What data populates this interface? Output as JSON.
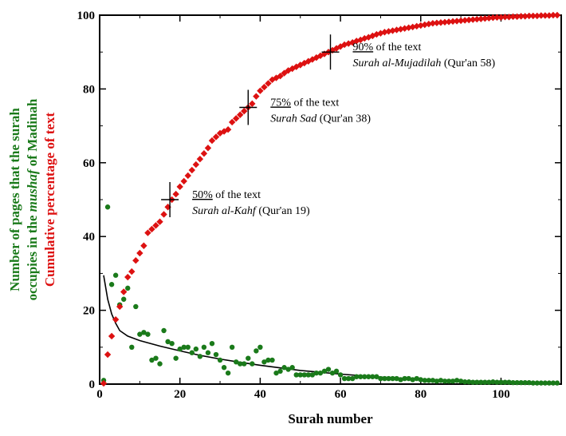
{
  "chart_data": {
    "type": "scatter",
    "xlabel": "Surah number",
    "ylabel_lines": [
      {
        "parts": [
          {
            "text": "Number of pages that the surah",
            "italic": false
          }
        ],
        "color": "#1a7a1a"
      },
      {
        "parts": [
          {
            "text": "occupies in the ",
            "italic": false
          },
          {
            "text": "mushaf",
            "italic": true
          },
          {
            "text": " of Madinah",
            "italic": false
          }
        ],
        "color": "#1a7a1a"
      },
      {
        "parts": [
          {
            "text": "Cumulative percentage of text",
            "italic": false
          }
        ],
        "color": "#dd1111"
      }
    ],
    "xlim": [
      0,
      115
    ],
    "ylim": [
      0,
      100
    ],
    "xticks": [
      0,
      20,
      40,
      60,
      80,
      100
    ],
    "yticks": [
      0,
      20,
      40,
      60,
      80,
      100
    ],
    "grid": false,
    "series": [
      {
        "kind": "pages",
        "color": "#1a7a1a",
        "marker": "circle",
        "points": [
          [
            1,
            1
          ],
          [
            2,
            48
          ],
          [
            3,
            27
          ],
          [
            4,
            29.5
          ],
          [
            5,
            21.5
          ],
          [
            6,
            23
          ],
          [
            7,
            26
          ],
          [
            8,
            10
          ],
          [
            9,
            21
          ],
          [
            10,
            13.5
          ],
          [
            11,
            14
          ],
          [
            12,
            13.5
          ],
          [
            13,
            6.5
          ],
          [
            14,
            7
          ],
          [
            15,
            5.5
          ],
          [
            16,
            14.5
          ],
          [
            17,
            11.5
          ],
          [
            18,
            11
          ],
          [
            19,
            7
          ],
          [
            20,
            9.5
          ],
          [
            21,
            10
          ],
          [
            22,
            10
          ],
          [
            23,
            8.5
          ],
          [
            24,
            9.5
          ],
          [
            25,
            7.5
          ],
          [
            26,
            10
          ],
          [
            27,
            8.5
          ],
          [
            28,
            11
          ],
          [
            29,
            8
          ],
          [
            30,
            6.5
          ],
          [
            31,
            4.5
          ],
          [
            32,
            3
          ],
          [
            33,
            10
          ],
          [
            34,
            6
          ],
          [
            35,
            5.5
          ],
          [
            36,
            5.5
          ],
          [
            37,
            7
          ],
          [
            38,
            5.5
          ],
          [
            39,
            9
          ],
          [
            40,
            10
          ],
          [
            41,
            6
          ],
          [
            42,
            6.5
          ],
          [
            43,
            6.5
          ],
          [
            44,
            3
          ],
          [
            45,
            3.5
          ],
          [
            46,
            4.5
          ],
          [
            47,
            4
          ],
          [
            48,
            4.5
          ],
          [
            49,
            2.5
          ],
          [
            50,
            2.5
          ],
          [
            51,
            2.5
          ],
          [
            52,
            2.5
          ],
          [
            53,
            2.5
          ],
          [
            54,
            3
          ],
          [
            55,
            3
          ],
          [
            56,
            3.5
          ],
          [
            57,
            4
          ],
          [
            58,
            3
          ],
          [
            59,
            3.5
          ],
          [
            60,
            2.5
          ],
          [
            61,
            1.5
          ],
          [
            62,
            1.5
          ],
          [
            63,
            1.5
          ],
          [
            64,
            2
          ],
          [
            65,
            2
          ],
          [
            66,
            2
          ],
          [
            67,
            2
          ],
          [
            68,
            2
          ],
          [
            69,
            2
          ],
          [
            70,
            1.5
          ],
          [
            71,
            1.5
          ],
          [
            72,
            1.5
          ],
          [
            73,
            1.5
          ],
          [
            74,
            1.5
          ],
          [
            75,
            1.2
          ],
          [
            76,
            1.5
          ],
          [
            77,
            1.5
          ],
          [
            78,
            1.2
          ],
          [
            79,
            1.5
          ],
          [
            80,
            1.2
          ],
          [
            81,
            1
          ],
          [
            82,
            1
          ],
          [
            83,
            1
          ],
          [
            84,
            0.8
          ],
          [
            85,
            1
          ],
          [
            86,
            0.8
          ],
          [
            87,
            0.8
          ],
          [
            88,
            0.8
          ],
          [
            89,
            1
          ],
          [
            90,
            0.8
          ],
          [
            91,
            0.6
          ],
          [
            92,
            0.6
          ],
          [
            93,
            0.5
          ],
          [
            94,
            0.5
          ],
          [
            95,
            0.5
          ],
          [
            96,
            0.5
          ],
          [
            97,
            0.5
          ],
          [
            98,
            0.6
          ],
          [
            99,
            0.5
          ],
          [
            100,
            0.5
          ],
          [
            101,
            0.5
          ],
          [
            102,
            0.5
          ],
          [
            103,
            0.4
          ],
          [
            104,
            0.4
          ],
          [
            105,
            0.4
          ],
          [
            106,
            0.4
          ],
          [
            107,
            0.4
          ],
          [
            108,
            0.3
          ],
          [
            109,
            0.3
          ],
          [
            110,
            0.3
          ],
          [
            111,
            0.3
          ],
          [
            112,
            0.3
          ],
          [
            113,
            0.3
          ],
          [
            114,
            0.3
          ]
        ]
      },
      {
        "kind": "cumulative",
        "color": "#dd1111",
        "marker": "diamond",
        "points": [
          [
            1,
            0.2
          ],
          [
            2,
            8
          ],
          [
            3,
            13
          ],
          [
            4,
            17.5
          ],
          [
            5,
            21
          ],
          [
            6,
            25
          ],
          [
            7,
            29
          ],
          [
            8,
            30.5
          ],
          [
            9,
            33.5
          ],
          [
            10,
            35.5
          ],
          [
            11,
            37.5
          ],
          [
            12,
            41
          ],
          [
            13,
            42
          ],
          [
            14,
            43
          ],
          [
            15,
            44
          ],
          [
            16,
            46
          ],
          [
            17,
            48
          ],
          [
            18,
            50
          ],
          [
            19,
            51.5
          ],
          [
            20,
            53.5
          ],
          [
            21,
            55
          ],
          [
            22,
            56.5
          ],
          [
            23,
            58
          ],
          [
            24,
            59.5
          ],
          [
            25,
            61
          ],
          [
            26,
            62.5
          ],
          [
            27,
            64
          ],
          [
            28,
            66
          ],
          [
            29,
            67
          ],
          [
            30,
            68
          ],
          [
            31,
            68.5
          ],
          [
            32,
            69
          ],
          [
            33,
            71
          ],
          [
            34,
            72
          ],
          [
            35,
            73
          ],
          [
            36,
            74
          ],
          [
            37,
            75
          ],
          [
            38,
            76
          ],
          [
            39,
            78
          ],
          [
            40,
            79.5
          ],
          [
            41,
            80.5
          ],
          [
            42,
            81.5
          ],
          [
            43,
            82.5
          ],
          [
            44,
            83
          ],
          [
            45,
            83.5
          ],
          [
            46,
            84.3
          ],
          [
            47,
            85
          ],
          [
            48,
            85.5
          ],
          [
            49,
            86
          ],
          [
            50,
            86.5
          ],
          [
            51,
            87
          ],
          [
            52,
            87.5
          ],
          [
            53,
            88
          ],
          [
            54,
            88.5
          ],
          [
            55,
            89
          ],
          [
            56,
            89.5
          ],
          [
            57,
            90
          ],
          [
            58,
            90.5
          ],
          [
            59,
            91
          ],
          [
            60,
            91.5
          ],
          [
            61,
            92
          ],
          [
            62,
            92.3
          ],
          [
            63,
            92.6
          ],
          [
            64,
            93
          ],
          [
            65,
            93.3
          ],
          [
            66,
            93.7
          ],
          [
            67,
            94
          ],
          [
            68,
            94.4
          ],
          [
            69,
            94.8
          ],
          [
            70,
            95.1
          ],
          [
            71,
            95.4
          ],
          [
            72,
            95.6
          ],
          [
            73,
            95.8
          ],
          [
            74,
            96
          ],
          [
            75,
            96.2
          ],
          [
            76,
            96.4
          ],
          [
            77,
            96.6
          ],
          [
            78,
            96.8
          ],
          [
            79,
            97
          ],
          [
            80,
            97.2
          ],
          [
            81,
            97.4
          ],
          [
            82,
            97.6
          ],
          [
            83,
            97.8
          ],
          [
            84,
            97.9
          ],
          [
            85,
            98
          ],
          [
            86,
            98.1
          ],
          [
            87,
            98.2
          ],
          [
            88,
            98.3
          ],
          [
            89,
            98.4
          ],
          [
            90,
            98.5
          ],
          [
            91,
            98.6
          ],
          [
            92,
            98.7
          ],
          [
            93,
            98.8
          ],
          [
            94,
            98.9
          ],
          [
            95,
            99
          ],
          [
            96,
            99.1
          ],
          [
            97,
            99.2
          ],
          [
            98,
            99.3
          ],
          [
            99,
            99.4
          ],
          [
            100,
            99.4
          ],
          [
            101,
            99.5
          ],
          [
            102,
            99.5
          ],
          [
            103,
            99.6
          ],
          [
            104,
            99.6
          ],
          [
            105,
            99.7
          ],
          [
            106,
            99.7
          ],
          [
            107,
            99.8
          ],
          [
            108,
            99.8
          ],
          [
            109,
            99.8
          ],
          [
            110,
            99.9
          ],
          [
            111,
            99.9
          ],
          [
            112,
            99.9
          ],
          [
            113,
            100
          ],
          [
            114,
            100
          ]
        ]
      }
    ],
    "trend_line": {
      "color": "#000000",
      "points": [
        [
          1,
          29.5
        ],
        [
          2,
          23
        ],
        [
          3,
          19
        ],
        [
          4,
          16.5
        ],
        [
          5,
          14.5
        ],
        [
          7,
          13
        ],
        [
          10,
          11.8
        ],
        [
          15,
          10.3
        ],
        [
          20,
          9
        ],
        [
          25,
          7.8
        ],
        [
          30,
          6.8
        ],
        [
          35,
          5.9
        ],
        [
          40,
          5.1
        ],
        [
          45,
          4.4
        ],
        [
          50,
          3.7
        ],
        [
          55,
          3.2
        ],
        [
          60,
          2.7
        ],
        [
          65,
          2.3
        ],
        [
          70,
          1.9
        ],
        [
          75,
          1.6
        ],
        [
          80,
          1.3
        ],
        [
          85,
          1.1
        ],
        [
          90,
          0.9
        ],
        [
          95,
          0.75
        ],
        [
          100,
          0.6
        ],
        [
          105,
          0.5
        ],
        [
          110,
          0.45
        ],
        [
          114,
          0.4
        ]
      ]
    },
    "markers": [
      {
        "x": 17.5,
        "y": 50,
        "pct_text": "50%",
        "rest_text": " of the text",
        "surah_name": "Surah al-Kahf",
        "surah_ref": " (Qur'an 19)"
      },
      {
        "x": 37,
        "y": 75,
        "pct_text": "75%",
        "rest_text": " of the text",
        "surah_name": "Surah Sad",
        "surah_ref": " (Qur'an 38)"
      },
      {
        "x": 57.5,
        "y": 90,
        "pct_text": "90%",
        "rest_text": " of the text",
        "surah_name": "Surah al-Mujadilah",
        "surah_ref": " (Qur'an 58)"
      }
    ]
  }
}
